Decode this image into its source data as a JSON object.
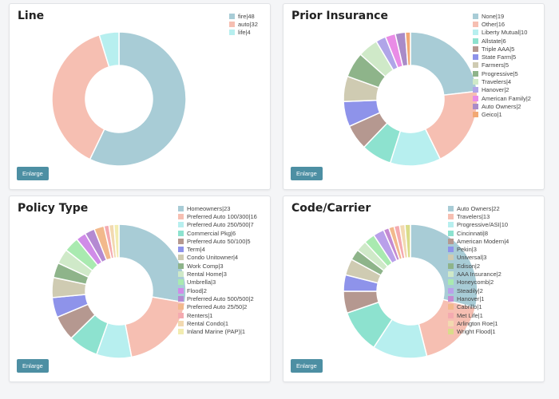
{
  "cards": [
    {
      "title": "Line",
      "button": "Enlarge",
      "legend_entries": [
        "fire|48",
        "auto|32",
        "life|4"
      ],
      "chart_data": {
        "type": "pie",
        "categories": [
          "fire",
          "auto",
          "life"
        ],
        "values": [
          48,
          32,
          4
        ],
        "colors": [
          "#a8ccd6",
          "#f6bfb2",
          "#b7efef"
        ]
      }
    },
    {
      "title": "Prior Insurance",
      "button": "Enlarge",
      "legend_entries": [
        "None|19",
        "Other|16",
        "Liberty Mutual|10",
        "Allstate|6",
        "Triple AAA|5",
        "State Farm|5",
        "Farmers|5",
        "Progressive|5",
        "Travelers|4",
        "Hanover|2",
        "American Family|2",
        "Auto Owners|2",
        "Geico|1"
      ],
      "chart_data": {
        "type": "pie",
        "categories": [
          "None",
          "Other",
          "Liberty Mutual",
          "Allstate",
          "Triple AAA",
          "State Farm",
          "Farmers",
          "Progressive",
          "Travelers",
          "Hanover",
          "American Family",
          "Auto Owners",
          "Geico"
        ],
        "values": [
          19,
          16,
          10,
          6,
          5,
          5,
          5,
          5,
          4,
          2,
          2,
          2,
          1
        ],
        "colors": [
          "#a8ccd6",
          "#f6bfb2",
          "#b7efef",
          "#8de2cf",
          "#b59890",
          "#8e93ea",
          "#cfcbb2",
          "#8eb48a",
          "#cfe9c8",
          "#b0a5e8",
          "#e98ce6",
          "#a98bc8",
          "#f2a874"
        ]
      }
    },
    {
      "title": "Policy Type",
      "button": "Enlarge",
      "legend_entries": [
        "Homeowners|23",
        "Preferred Auto 100/300|16",
        "Preferred Auto 250/500|7",
        "Commercial Pkg|6",
        "Preferred Auto 50/100|5",
        "Term|4",
        "Condo Unitowner|4",
        "Work Comp|3",
        "Rental Home|3",
        "Umbrella|3",
        "Flood|2",
        "Preferred Auto 500/500|2",
        "Preferred Auto 25/50|2",
        "Renters|1",
        "Rental Condo|1",
        "Inland Marine (PAP)|1"
      ],
      "chart_data": {
        "type": "pie",
        "categories": [
          "Homeowners",
          "Preferred Auto 100/300",
          "Preferred Auto 250/500",
          "Commercial Pkg",
          "Preferred Auto 50/100",
          "Term",
          "Condo Unitowner",
          "Work Comp",
          "Rental Home",
          "Umbrella",
          "Flood",
          "Preferred Auto 500/500",
          "Preferred Auto 25/50",
          "Renters",
          "Rental Condo",
          "Inland Marine (PAP)"
        ],
        "values": [
          23,
          16,
          7,
          6,
          5,
          4,
          4,
          3,
          3,
          3,
          2,
          2,
          2,
          1,
          1,
          1
        ],
        "colors": [
          "#a8ccd6",
          "#f6bfb2",
          "#b7efef",
          "#8de2cf",
          "#b59890",
          "#8e93ea",
          "#cfcbb2",
          "#8eb48a",
          "#cfe9c8",
          "#a9eab0",
          "#d08ce8",
          "#b48ad2",
          "#f2b98c",
          "#f4aab0",
          "#f2d9b0",
          "#f2ecb0"
        ]
      }
    },
    {
      "title": "Code/Carrier",
      "button": "Enlarge",
      "legend_entries": [
        "Auto Owners|22",
        "Travelers|13",
        "Progressive/ASI|10",
        "Cincinnati|8",
        "American Modern|4",
        "Pekin|3",
        "Universal|3",
        "Edison|2",
        "AAA Insurance|2",
        "Honeycomb|2",
        "Steadily|2",
        "Hanover|1",
        "Cabrillo|1",
        "Met Life|1",
        "Arlington Roe|1",
        "Wright Flood|1"
      ],
      "chart_data": {
        "type": "pie",
        "categories": [
          "Auto Owners",
          "Travelers",
          "Progressive/ASI",
          "Cincinnati",
          "American Modern",
          "Pekin",
          "Universal",
          "Edison",
          "AAA Insurance",
          "Honeycomb",
          "Steadily",
          "Hanover",
          "Cabrillo",
          "Met Life",
          "Arlington Roe",
          "Wright Flood"
        ],
        "values": [
          22,
          13,
          10,
          8,
          4,
          3,
          3,
          2,
          2,
          2,
          2,
          1,
          1,
          1,
          1,
          1
        ],
        "colors": [
          "#a8ccd6",
          "#f6bfb2",
          "#b7efef",
          "#8de2cf",
          "#b59890",
          "#8e93ea",
          "#cfcbb2",
          "#8eb48a",
          "#cfe9c8",
          "#a9eab0",
          "#b9a0ea",
          "#c48ad2",
          "#f2b98c",
          "#f4aab0",
          "#f2d9b0",
          "#d9dc8a"
        ]
      }
    }
  ]
}
